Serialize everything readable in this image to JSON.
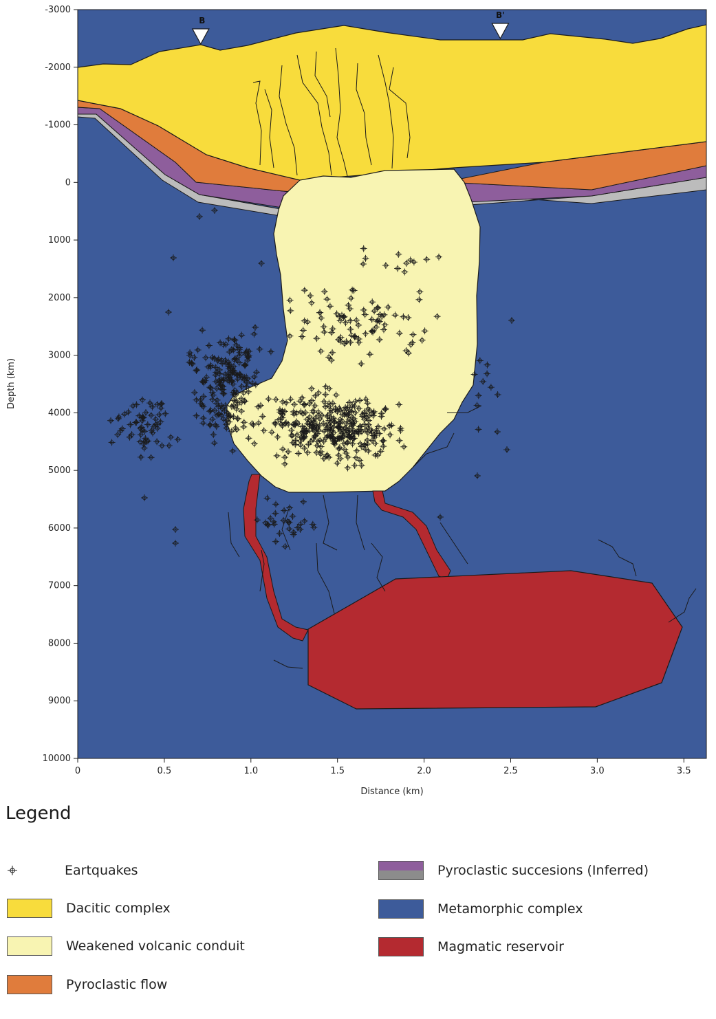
{
  "axes": {
    "x_label": "Distance (km)",
    "y_label": "Depth (km)",
    "x_ticks": [
      "0",
      "0.5",
      "1.0",
      "1.5",
      "2.0",
      "2.5",
      "3.0",
      "3.5"
    ],
    "x_tick_values": [
      0,
      0.5,
      1.0,
      1.5,
      2.0,
      2.5,
      3.0,
      3.5
    ],
    "y_ticks": [
      "-3000",
      "-2000",
      "-1000",
      "0",
      "1000",
      "2000",
      "3000",
      "4000",
      "5000",
      "6000",
      "7000",
      "8000",
      "9000",
      "10000"
    ],
    "y_tick_values": [
      -3000,
      -2000,
      -1000,
      0,
      1000,
      2000,
      3000,
      4000,
      5000,
      6000,
      7000,
      8000,
      9000,
      10000
    ],
    "x_range": [
      0,
      3.63
    ],
    "y_range": [
      -3000,
      10000
    ]
  },
  "markers": [
    {
      "label": "B",
      "x_km": 0.71
    },
    {
      "label": "B'",
      "x_km": 2.44
    }
  ],
  "colors": {
    "dacitic": "#f8dc3c",
    "conduit": "#f8f4b2",
    "pyroclastic_flow": "#e07c3c",
    "pyroclastic_purple": "#8e5e9c",
    "pyroclastic_grey": "#bcbcbc",
    "metamorphic": "#3d5b9a",
    "magma": "#b42a30",
    "outline": "#1a1a1a"
  },
  "legend": {
    "title": "Legend",
    "items": [
      {
        "label": "Eartquakes",
        "swatch": "quake"
      },
      {
        "label": "Dacitic complex",
        "swatch": "dacitic"
      },
      {
        "label": "Weakened volcanic conduit",
        "swatch": "conduit"
      },
      {
        "label": "Pyroclastic flow",
        "swatch": "pyroclastic_flow"
      },
      {
        "label": "Pyroclastic succesions (Inferred)",
        "swatch": "pyroclastic_double"
      },
      {
        "label": "Metamorphic complex",
        "swatch": "metamorphic"
      },
      {
        "label": "Magmatic reservoir",
        "swatch": "magma"
      }
    ]
  }
}
